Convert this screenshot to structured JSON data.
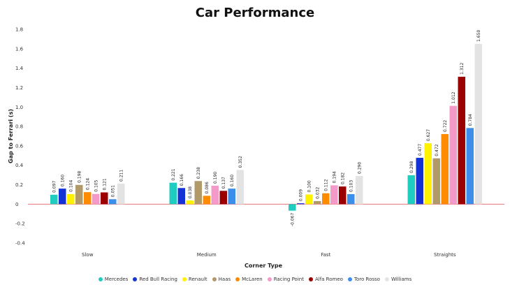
{
  "chart_data": {
    "type": "bar",
    "title": "Car Performance",
    "xlabel": "Corner Type",
    "ylabel": "Gap to Ferrari (s)",
    "ylim": [
      -0.4,
      1.8
    ],
    "yticks": [
      -0.4,
      -0.2,
      0,
      0.2,
      0.4,
      0.6,
      0.8,
      1.0,
      1.2,
      1.4,
      1.6,
      1.8
    ],
    "ytick_labels": [
      "-0.4",
      "-0.2",
      "0",
      "0.2",
      "0.4",
      "0.6",
      "0.8",
      "1.0",
      "1.2",
      "1.4",
      "1.6",
      "1.8"
    ],
    "grid": false,
    "legend_position": "bottom",
    "categories": [
      "Slow",
      "Medium",
      "Fast",
      "Straights"
    ],
    "series": [
      {
        "name": "Mercedes",
        "color": "#1ecdbf",
        "values": [
          0.097,
          0.221,
          -0.067,
          0.298
        ],
        "labels": [
          "0.097",
          "0.221",
          "-0.067",
          "0.298"
        ]
      },
      {
        "name": "Red Bull Racing",
        "color": "#1432d6",
        "values": [
          0.16,
          0.166,
          0.009,
          0.477
        ],
        "labels": [
          "0.160",
          "0.166",
          "0.009",
          "0.477"
        ]
      },
      {
        "name": "Renault",
        "color": "#fff200",
        "values": [
          0.104,
          0.038,
          0.1,
          0.627
        ],
        "labels": [
          "0.104",
          "0.038",
          "0.100",
          "0.627"
        ]
      },
      {
        "name": "Haas",
        "color": "#b09a6a",
        "values": [
          0.198,
          0.238,
          0.032,
          0.472
        ],
        "labels": [
          "0.198",
          "0.238",
          "0.032",
          "0.472"
        ]
      },
      {
        "name": "McLaren",
        "color": "#ff8c00",
        "values": [
          0.124,
          0.086,
          0.112,
          0.722
        ],
        "labels": [
          "0.124",
          "0.086",
          "0.112",
          "0.722"
        ]
      },
      {
        "name": "Racing Point",
        "color": "#f49ac9",
        "values": [
          0.105,
          0.19,
          0.194,
          1.012
        ],
        "labels": [
          "0.105",
          "0.190",
          "0.194",
          "1.012"
        ]
      },
      {
        "name": "Alfa Romeo",
        "color": "#9b0000",
        "values": [
          0.121,
          0.137,
          0.182,
          1.312
        ],
        "labels": [
          "0.121",
          "0.137",
          "0.182",
          "1.312"
        ]
      },
      {
        "name": "Toro Rosso",
        "color": "#3b8eea",
        "values": [
          0.051,
          0.16,
          0.103,
          0.784
        ],
        "labels": [
          "0.051",
          "0.160",
          "0.103",
          "0.784"
        ]
      },
      {
        "name": "Williams",
        "color": "#e3e3e3",
        "values": [
          0.211,
          0.352,
          0.29,
          1.65
        ],
        "labels": [
          "0.211",
          "0.352",
          "0.290",
          "1.650"
        ]
      }
    ],
    "zero_line_color": "#e57373"
  }
}
